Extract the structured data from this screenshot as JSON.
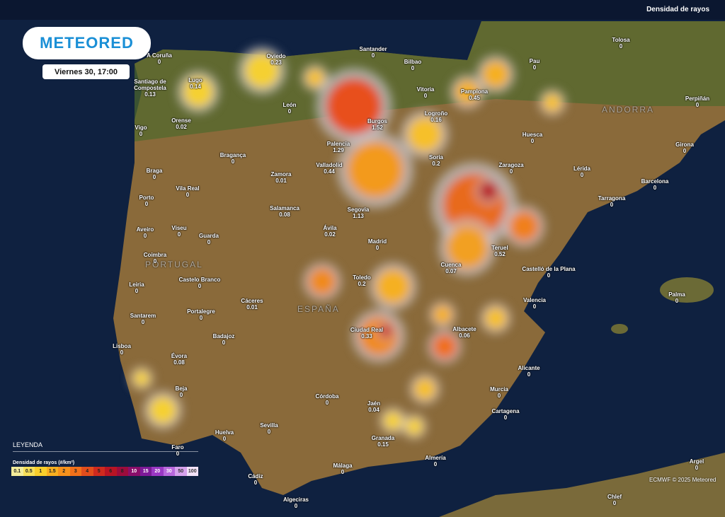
{
  "header": {
    "title": "Densidad de rayos",
    "logo": "METEORED",
    "date": "Viernes 30, 17:00"
  },
  "regions": [
    "PORTUGAL",
    "ESPAÑA",
    "ANDORRA"
  ],
  "cities": [
    {
      "name": "A Coruña",
      "value": 0
    },
    {
      "name": "Lugo",
      "value": 0.14
    },
    {
      "name": "Santiago de Compostela",
      "value": 0.13
    },
    {
      "name": "Oviedo",
      "value": 0.23
    },
    {
      "name": "Santander",
      "value": 0
    },
    {
      "name": "Bilbao",
      "value": 0
    },
    {
      "name": "Vitoria",
      "value": 0
    },
    {
      "name": "Pamplona",
      "value": 0.45
    },
    {
      "name": "Pau",
      "value": 0
    },
    {
      "name": "Tolosa",
      "value": 0
    },
    {
      "name": "Orense",
      "value": 0.02
    },
    {
      "name": "Vigo",
      "value": 0
    },
    {
      "name": "León",
      "value": 0
    },
    {
      "name": "Burgos",
      "value": 1.52
    },
    {
      "name": "Logroño",
      "value": 0.16
    },
    {
      "name": "Huesca",
      "value": 0
    },
    {
      "name": "Perpiñán",
      "value": 0
    },
    {
      "name": "Palencia",
      "value": 1.29
    },
    {
      "name": "Girona",
      "value": 0
    },
    {
      "name": "Braga",
      "value": 0
    },
    {
      "name": "Bragança",
      "value": 0
    },
    {
      "name": "Soria",
      "value": 0.2
    },
    {
      "name": "Zaragoza",
      "value": 0
    },
    {
      "name": "Lérida",
      "value": 0
    },
    {
      "name": "Valladolid",
      "value": 0.44
    },
    {
      "name": "Zamora",
      "value": 0.01
    },
    {
      "name": "Vila Real",
      "value": 0
    },
    {
      "name": "Barcelona",
      "value": 0
    },
    {
      "name": "Porto",
      "value": 0
    },
    {
      "name": "Tarragona",
      "value": 0
    },
    {
      "name": "Salamanca",
      "value": 0.08
    },
    {
      "name": "Segovia",
      "value": 1.13
    },
    {
      "name": "Aveiro",
      "value": 0
    },
    {
      "name": "Viseu",
      "value": 0
    },
    {
      "name": "Guarda",
      "value": 0
    },
    {
      "name": "Ávila",
      "value": 0.02
    },
    {
      "name": "Madrid",
      "value": 0
    },
    {
      "name": "Teruel",
      "value": 0.52
    },
    {
      "name": "Coimbra",
      "value": 0
    },
    {
      "name": "Cuenca",
      "value": 0.07
    },
    {
      "name": "Castelló de la Plana",
      "value": 0
    },
    {
      "name": "Castelo Branco",
      "value": 0
    },
    {
      "name": "Toledo",
      "value": 0.2
    },
    {
      "name": "Leiria",
      "value": 0
    },
    {
      "name": "Palma",
      "value": 0
    },
    {
      "name": "Cáceres",
      "value": 0.01
    },
    {
      "name": "Valencia",
      "value": 0
    },
    {
      "name": "Portalegre",
      "value": 0
    },
    {
      "name": "Santarem",
      "value": 0
    },
    {
      "name": "Ciudad Real",
      "value": 0.33
    },
    {
      "name": "Albacete",
      "value": 0.06
    },
    {
      "name": "Badajoz",
      "value": 0
    },
    {
      "name": "Lisboa",
      "value": 0
    },
    {
      "name": "Évora",
      "value": 0.08
    },
    {
      "name": "Alicante",
      "value": 0
    },
    {
      "name": "Beja",
      "value": 0
    },
    {
      "name": "Murcia",
      "value": 0
    },
    {
      "name": "Córdoba",
      "value": 0
    },
    {
      "name": "Jaén",
      "value": 0.04
    },
    {
      "name": "Cartagena",
      "value": 0
    },
    {
      "name": "Sevilla",
      "value": 0
    },
    {
      "name": "Huelva",
      "value": 0
    },
    {
      "name": "Granada",
      "value": 0.15
    },
    {
      "name": "Faro",
      "value": 0
    },
    {
      "name": "Almería",
      "value": 0
    },
    {
      "name": "Málaga",
      "value": 0
    },
    {
      "name": "Argel",
      "value": 0
    },
    {
      "name": "Cádiz",
      "value": 0
    },
    {
      "name": "Algeciras",
      "value": 0
    },
    {
      "name": "Chlef",
      "value": 0
    }
  ],
  "legend": {
    "title": "LEYENDA",
    "subtitle": "Densidad de rayos (#/km²)",
    "items": [
      {
        "value": 0.1,
        "color": "#f3ec9a"
      },
      {
        "value": 0.5,
        "color": "#f7e05a"
      },
      {
        "value": 1,
        "color": "#f9cf2c"
      },
      {
        "value": 1.5,
        "color": "#f9b020"
      },
      {
        "value": 2,
        "color": "#f7921c"
      },
      {
        "value": 3,
        "color": "#f1701a"
      },
      {
        "value": 4,
        "color": "#e24d1c"
      },
      {
        "value": 5,
        "color": "#cf2a1e"
      },
      {
        "value": 6,
        "color": "#b81424"
      },
      {
        "value": 8,
        "color": "#9c0c3c"
      },
      {
        "value": 10,
        "color": "#8a0e6a"
      },
      {
        "value": 15,
        "color": "#7d1a98"
      },
      {
        "value": 20,
        "color": "#9a38c4"
      },
      {
        "value": 30,
        "color": "#b868dc"
      },
      {
        "value": 50,
        "color": "#d6a2ec"
      },
      {
        "value": 100,
        "color": "#f2e2f8"
      }
    ]
  },
  "credit": "ECMWF © 2025 Meteored"
}
